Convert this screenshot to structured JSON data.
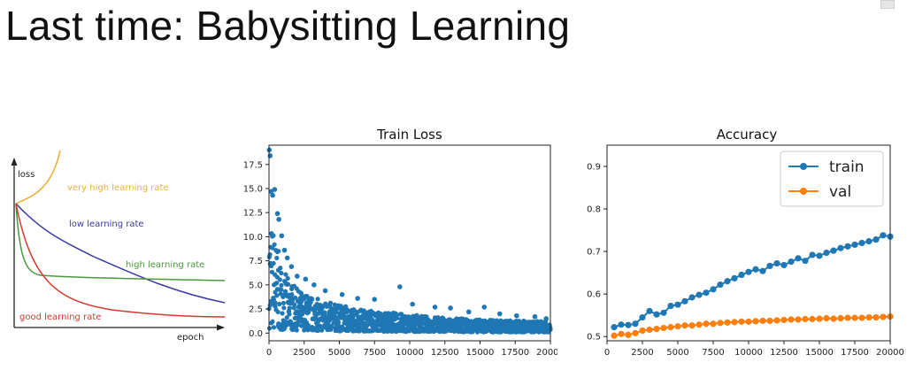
{
  "slide": {
    "title": "Last time: Babysitting Learning"
  },
  "sketch": {
    "y_label": "loss",
    "x_label": "epoch",
    "curves": [
      {
        "label": "very high learning rate",
        "color": "#e8b13a"
      },
      {
        "label": "low learning rate",
        "color": "#3a3aa8"
      },
      {
        "label": "high learning rate",
        "color": "#4a9a3a"
      },
      {
        "label": "good learning rate",
        "color": "#d23a2e"
      }
    ]
  },
  "chart_data": [
    {
      "type": "scatter",
      "title": "Train Loss",
      "xlim": [
        0,
        20000
      ],
      "ylim": [
        -0.8,
        19.5
      ],
      "xticks": [
        0,
        2500,
        5000,
        7500,
        10000,
        12500,
        15000,
        17500,
        20000
      ],
      "yticks": [
        0.0,
        2.5,
        5.0,
        7.5,
        10.0,
        12.5,
        15.0,
        17.5
      ],
      "ytick_labels": [
        "0.0",
        "2.5",
        "5.0",
        "7.5",
        "10.0",
        "12.5",
        "15.0",
        "17.5"
      ],
      "color": "#1f77b4",
      "envelope": {
        "x": [
          0,
          300,
          600,
          1000,
          1500,
          2000,
          2500,
          3000,
          4000,
          5000,
          6000,
          7500,
          9000,
          10000,
          12500,
          15000,
          17500,
          20000
        ],
        "high": [
          12.0,
          11.0,
          9.0,
          6.5,
          5.3,
          4.6,
          4.2,
          3.8,
          3.3,
          2.9,
          2.6,
          2.3,
          2.1,
          1.9,
          1.6,
          1.4,
          1.3,
          1.2
        ],
        "low": [
          0.5,
          0.4,
          0.4,
          0.35,
          0.3,
          0.3,
          0.3,
          0.25,
          0.25,
          0.2,
          0.2,
          0.2,
          0.15,
          0.15,
          0.15,
          0.1,
          0.1,
          0.1
        ]
      },
      "outliers": [
        [
          20,
          19.0
        ],
        [
          80,
          18.4
        ],
        [
          150,
          14.7
        ],
        [
          260,
          14.3
        ],
        [
          400,
          14.9
        ],
        [
          600,
          12.4
        ],
        [
          700,
          11.8
        ],
        [
          900,
          10.1
        ],
        [
          1100,
          8.6
        ],
        [
          1300,
          7.8
        ],
        [
          1600,
          6.9
        ],
        [
          2000,
          5.9
        ],
        [
          2600,
          5.6
        ],
        [
          3200,
          5.0
        ],
        [
          4000,
          4.4
        ],
        [
          5200,
          4.0
        ],
        [
          6300,
          3.6
        ],
        [
          7500,
          3.5
        ],
        [
          9300,
          4.8
        ],
        [
          10200,
          3.0
        ],
        [
          11800,
          2.7
        ],
        [
          12900,
          2.6
        ],
        [
          14200,
          2.2
        ],
        [
          15300,
          2.7
        ],
        [
          16400,
          2.0
        ],
        [
          17600,
          1.8
        ],
        [
          18900,
          1.7
        ],
        [
          19700,
          1.5
        ]
      ]
    },
    {
      "type": "line",
      "title": "Accuracy",
      "xlim": [
        0,
        20000
      ],
      "ylim": [
        0.49,
        0.95
      ],
      "xticks": [
        0,
        2500,
        5000,
        7500,
        10000,
        12500,
        15000,
        17500,
        20000
      ],
      "yticks": [
        0.5,
        0.6,
        0.7,
        0.8,
        0.9
      ],
      "legend": "top-right",
      "x": [
        500,
        1000,
        1500,
        2000,
        2500,
        3000,
        3500,
        4000,
        4500,
        5000,
        5500,
        6000,
        6500,
        7000,
        7500,
        8000,
        8500,
        9000,
        9500,
        10000,
        10500,
        11000,
        11500,
        12000,
        12500,
        13000,
        13500,
        14000,
        14500,
        15000,
        15500,
        16000,
        16500,
        17000,
        17500,
        18000,
        18500,
        19000,
        19500,
        20000
      ],
      "series": [
        {
          "name": "train",
          "color": "#1f77b4",
          "values": [
            0.522,
            0.528,
            0.527,
            0.53,
            0.545,
            0.56,
            0.552,
            0.556,
            0.572,
            0.575,
            0.583,
            0.592,
            0.598,
            0.603,
            0.611,
            0.622,
            0.63,
            0.637,
            0.645,
            0.652,
            0.658,
            0.654,
            0.666,
            0.672,
            0.668,
            0.676,
            0.684,
            0.678,
            0.692,
            0.69,
            0.697,
            0.702,
            0.708,
            0.712,
            0.716,
            0.72,
            0.724,
            0.728,
            0.738,
            0.735
          ]
        },
        {
          "name": "val",
          "color": "#ff7f0e",
          "values": [
            0.502,
            0.506,
            0.504,
            0.508,
            0.514,
            0.516,
            0.518,
            0.52,
            0.522,
            0.524,
            0.526,
            0.526,
            0.528,
            0.53,
            0.53,
            0.532,
            0.533,
            0.534,
            0.535,
            0.535,
            0.536,
            0.537,
            0.537,
            0.538,
            0.539,
            0.54,
            0.54,
            0.541,
            0.541,
            0.542,
            0.543,
            0.542,
            0.543,
            0.544,
            0.544,
            0.544,
            0.545,
            0.545,
            0.546,
            0.547
          ]
        }
      ]
    }
  ]
}
